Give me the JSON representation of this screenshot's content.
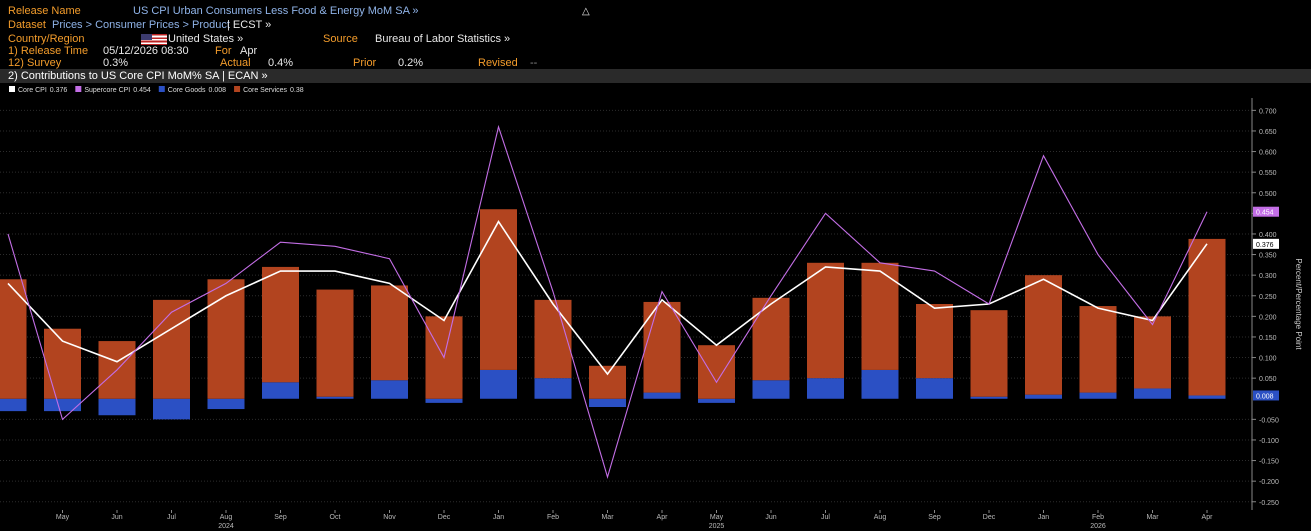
{
  "header": {
    "release_name_label": "Release Name",
    "release_name": "US CPI Urban Consumers Less Food & Energy MoM SA »",
    "dataset_label": "Dataset",
    "dataset_path": "Prices > Consumer Prices > Product",
    "dataset_code": "| ECST »",
    "country_label": "Country/Region",
    "country": "United States »",
    "source_label": "Source",
    "source": "Bureau of Labor Statistics »",
    "release_time_label": "1) Release Time",
    "release_time": "05/12/2026 08:30",
    "for_label": "For",
    "for": "Apr",
    "survey_label": "12) Survey",
    "survey": "0.3%",
    "actual_label": "Actual",
    "actual": "0.4%",
    "prior_label": "Prior",
    "prior": "0.2%",
    "revised_label": "Revised",
    "revised": "--",
    "panel_title": "2) Contributions to US Core CPI MoM% SA | ECAN »"
  },
  "chart_data": {
    "type": "bar",
    "y_axis_label": "Percent/Percentage Point",
    "categories": [
      null,
      "May",
      "Jun",
      "Jul",
      "Aug",
      "Sep",
      "Oct",
      "Nov",
      "Dec",
      "Jan",
      "Feb",
      "Mar",
      "Apr",
      "May",
      "Jun",
      "Jul",
      "Aug",
      "Sep",
      "Dec",
      "Jan",
      "Feb",
      "Mar",
      "Apr"
    ],
    "category_years": [
      null,
      null,
      null,
      null,
      "2024",
      null,
      null,
      null,
      null,
      null,
      null,
      null,
      null,
      "2025",
      null,
      null,
      null,
      null,
      null,
      null,
      "2026",
      null,
      null
    ],
    "series": [
      {
        "name": "Core CPI",
        "type": "line",
        "color": "#ffffff",
        "values": [
          0.28,
          0.14,
          0.09,
          0.17,
          0.25,
          0.31,
          0.31,
          0.28,
          0.19,
          0.43,
          0.23,
          0.06,
          0.24,
          0.13,
          0.23,
          0.32,
          0.31,
          0.22,
          0.23,
          0.29,
          0.22,
          0.19,
          0.376
        ]
      },
      {
        "name": "Supercore CPI",
        "type": "line",
        "color": "#c36ee6",
        "values": [
          0.4,
          -0.05,
          0.07,
          0.21,
          0.28,
          0.38,
          0.37,
          0.34,
          0.1,
          0.66,
          0.26,
          -0.19,
          0.26,
          0.04,
          0.25,
          0.45,
          0.33,
          0.31,
          0.23,
          0.59,
          0.35,
          0.18,
          0.454
        ]
      },
      {
        "name": "Core Goods",
        "type": "bar",
        "color": "#2b50c4",
        "values": [
          -0.03,
          -0.03,
          -0.04,
          -0.05,
          -0.025,
          0.04,
          0.005,
          0.045,
          -0.01,
          0.07,
          0.05,
          -0.02,
          0.015,
          -0.01,
          0.045,
          0.05,
          0.07,
          0.05,
          0.005,
          0.01,
          0.015,
          0.025,
          0.008
        ]
      },
      {
        "name": "Core Services",
        "type": "bar",
        "color": "#b2441f",
        "values": [
          0.29,
          0.17,
          0.14,
          0.24,
          0.29,
          0.28,
          0.26,
          0.23,
          0.2,
          0.39,
          0.19,
          0.08,
          0.22,
          0.13,
          0.2,
          0.28,
          0.26,
          0.18,
          0.21,
          0.29,
          0.21,
          0.175,
          0.38
        ]
      }
    ],
    "ylim": [
      -0.27,
      0.73
    ],
    "yticks": [
      {
        "value": -0.25,
        "label": "-0.250"
      },
      {
        "value": -0.2,
        "label": "-0.200"
      },
      {
        "value": -0.15,
        "label": "-0.150"
      },
      {
        "value": -0.1,
        "label": "-0.100"
      },
      {
        "value": -0.05,
        "label": "-0.050"
      },
      {
        "value": 0.05,
        "label": "0.050"
      },
      {
        "value": 0.1,
        "label": "0.100"
      },
      {
        "value": 0.15,
        "label": "0.150"
      },
      {
        "value": 0.2,
        "label": "0.200"
      },
      {
        "value": 0.25,
        "label": "0.250"
      },
      {
        "value": 0.3,
        "label": "0.300"
      },
      {
        "value": 0.35,
        "label": "0.350"
      },
      {
        "value": 0.4,
        "label": "0.400"
      },
      {
        "value": 0.45,
        "label": "0.450"
      },
      {
        "value": 0.5,
        "label": "0.500"
      },
      {
        "value": 0.55,
        "label": "0.550"
      },
      {
        "value": 0.6,
        "label": "0.600"
      },
      {
        "value": 0.65,
        "label": "0.650"
      },
      {
        "value": 0.7,
        "label": "0.700"
      }
    ],
    "grid": true
  }
}
